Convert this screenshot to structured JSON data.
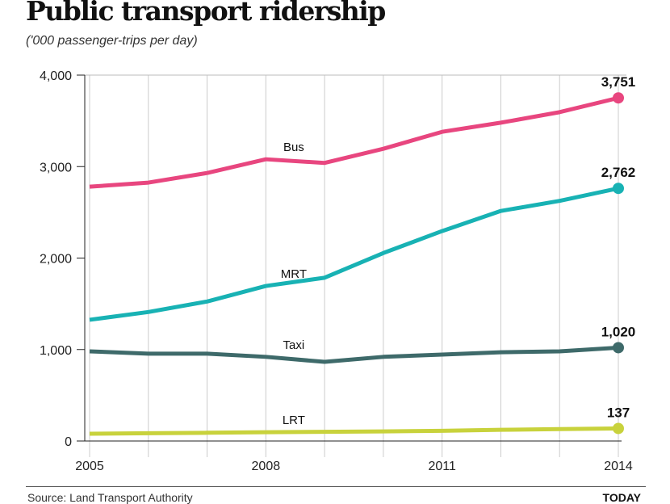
{
  "chart_data": {
    "type": "line",
    "title": "Public transport ridership",
    "subtitle": "('000 passenger-trips per day)",
    "x": [
      2005,
      2006,
      2007,
      2008,
      2009,
      2010,
      2011,
      2012,
      2013,
      2014
    ],
    "xticks": [
      "2005",
      "2008",
      "2011",
      "2014"
    ],
    "yticks": [
      "0",
      "1,000",
      "2,000",
      "3,000",
      "4,000"
    ],
    "ylim": [
      0,
      4000
    ],
    "grid": "vertical",
    "series": [
      {
        "name": "Bus",
        "color": "#e8467f",
        "values": [
          2780,
          2825,
          2930,
          3080,
          3040,
          3195,
          3380,
          3480,
          3595,
          3751
        ],
        "end_label": "3,751"
      },
      {
        "name": "MRT",
        "color": "#18b2b4",
        "values": [
          1325,
          1410,
          1525,
          1695,
          1785,
          2055,
          2295,
          2515,
          2625,
          2762
        ],
        "end_label": "2,762"
      },
      {
        "name": "Taxi",
        "color": "#3e6a6a",
        "values": [
          980,
          955,
          955,
          920,
          865,
          920,
          945,
          970,
          980,
          1020
        ],
        "end_label": "1,020"
      },
      {
        "name": "LRT",
        "color": "#c8d23c",
        "values": [
          79,
          85,
          90,
          96,
          100,
          105,
          112,
          122,
          130,
          137
        ],
        "end_label": "137"
      }
    ],
    "source": "Source: Land Transport Authority",
    "brand": "TODAY"
  }
}
